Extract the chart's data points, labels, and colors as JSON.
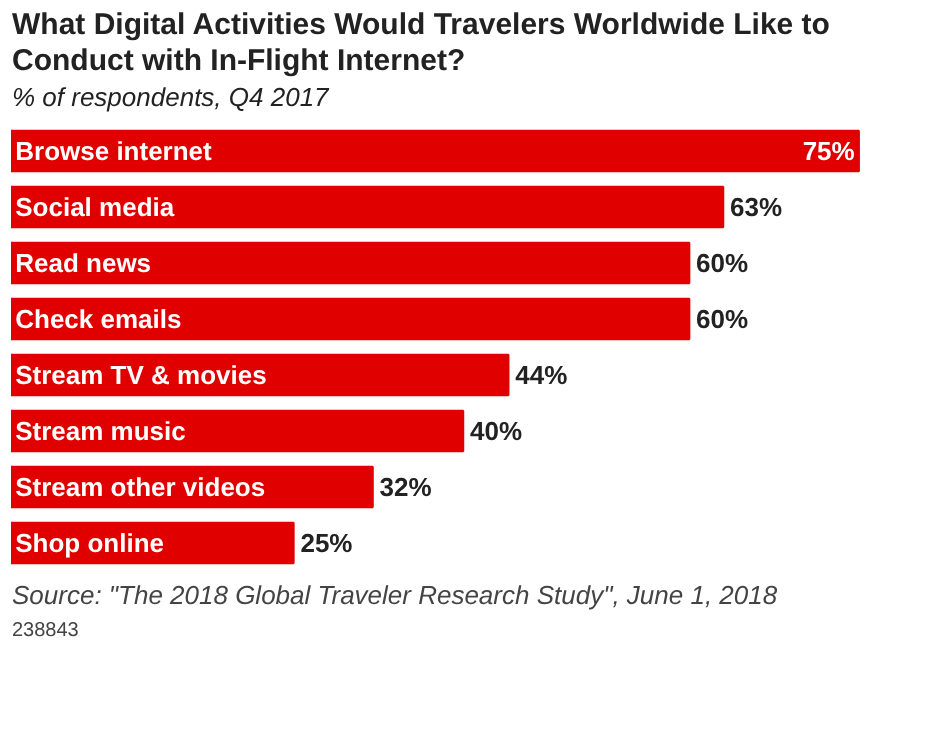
{
  "chart_data": {
    "type": "bar",
    "orientation": "horizontal",
    "title": "What Digital Activities Would Travelers Worldwide Like to Conduct with In-Flight Internet?",
    "subtitle": "% of respondents, Q4 2017",
    "categories": [
      "Browse internet",
      "Social media",
      "Read news",
      "Check emails",
      "Stream TV & movies",
      "Stream music",
      "Stream other videos",
      "Shop online"
    ],
    "values": [
      75,
      63,
      60,
      60,
      44,
      40,
      32,
      25
    ],
    "value_labels": [
      "75%",
      "63%",
      "60%",
      "60%",
      "44%",
      "40%",
      "32%",
      "25%"
    ],
    "color": "#e00000",
    "annotations": [
      "Source: \"The 2018 Global Traveler Research Study\", June 1, 2018",
      "238843"
    ]
  }
}
